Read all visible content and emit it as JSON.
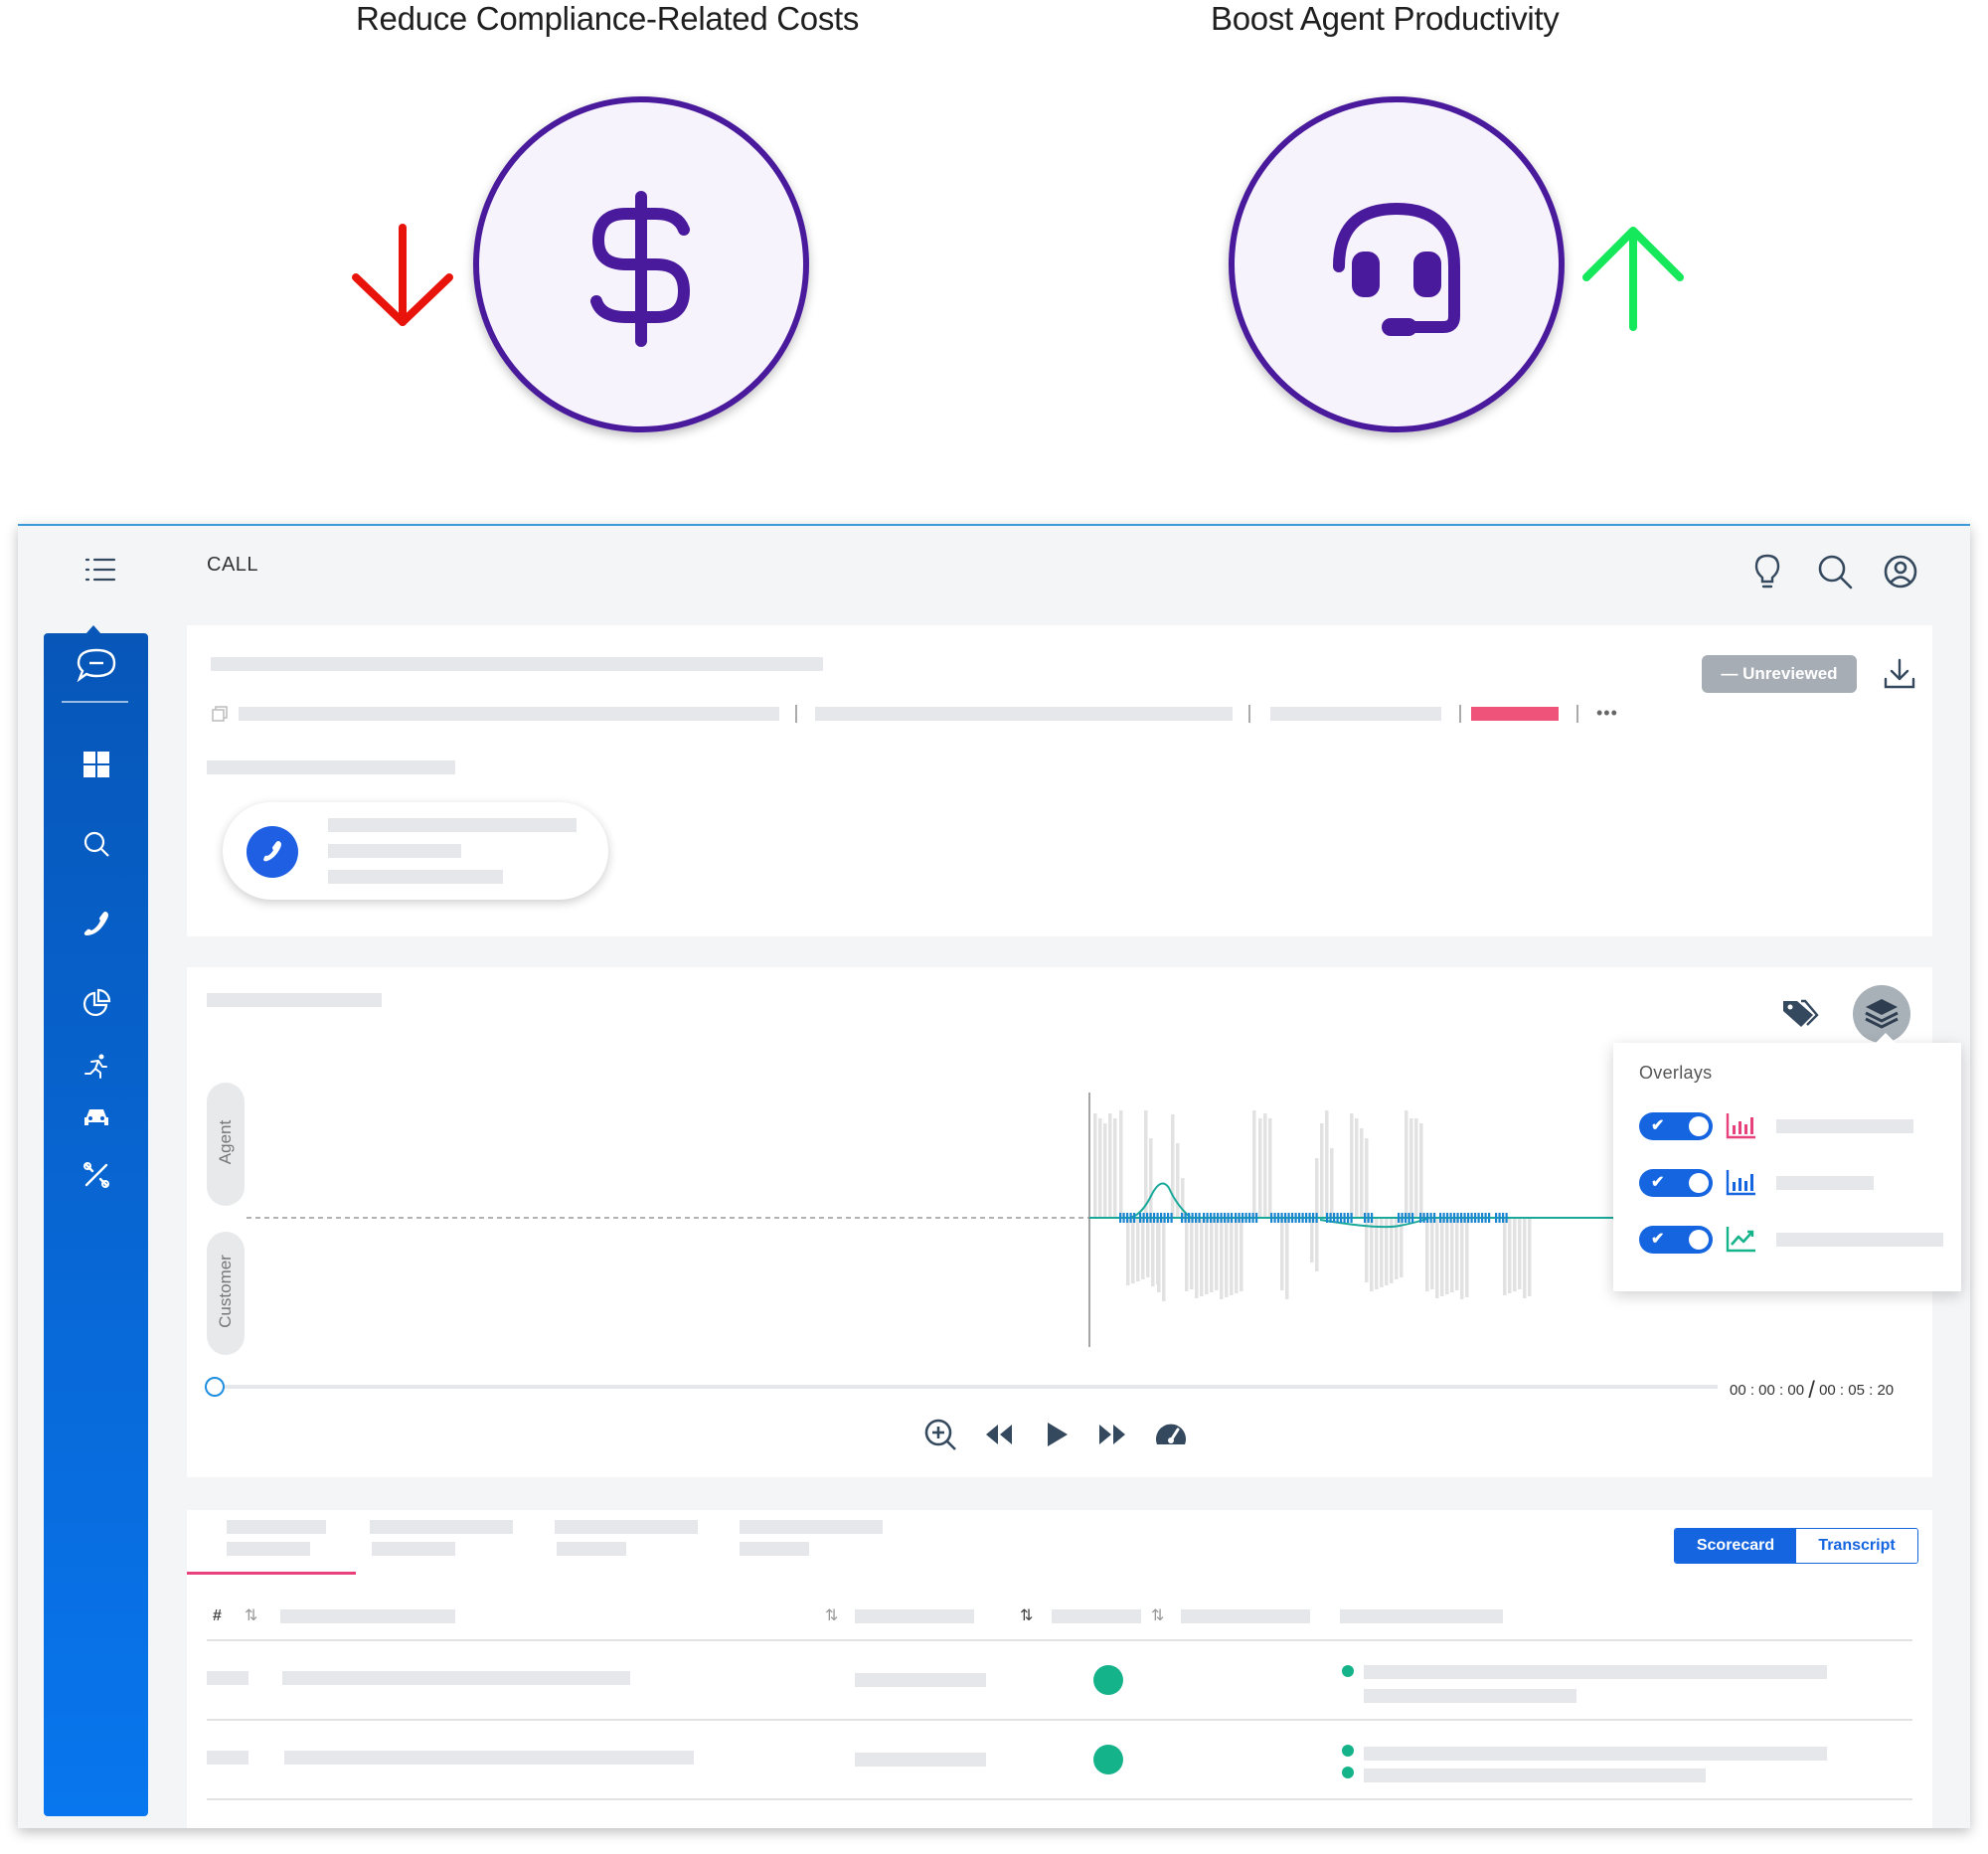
{
  "headings": {
    "left": "Reduce Compliance-Related Costs",
    "right": "Boost Agent Productivity"
  },
  "icons": {
    "left_circle": "dollar-icon",
    "right_circle": "headset-icon",
    "left_arrow": "arrow-down-icon",
    "right_arrow": "arrow-up-icon"
  },
  "colors": {
    "brand_purple": "#4a1a9c",
    "arrow_down": "#e8140c",
    "arrow_up": "#15e85a",
    "sidebar_blue": "#0876ee",
    "accent_red": "#f0537a",
    "green": "#15b38a"
  },
  "app": {
    "page_title": "CALL",
    "header_icons": [
      "lightbulb-icon",
      "search-icon",
      "user-icon"
    ],
    "sidebar_icons": [
      "chat-icon",
      "dashboard-icon",
      "search-icon",
      "phone-icon",
      "pie-chart-icon",
      "runner-icon",
      "car-icon",
      "tools-icon"
    ],
    "status_badge": "— Unreviewed",
    "waveform": {
      "agent_label": "Agent",
      "customer_label": "Customer",
      "time_current": "00 : 00 : 00",
      "time_separator": "/",
      "time_total": "00 : 05 : 20"
    },
    "overlays": {
      "title": "Overlays",
      "items": [
        {
          "checked": true,
          "icon": "bar-chart-icon",
          "color": "#e8407a"
        },
        {
          "checked": true,
          "icon": "bar-chart-icon",
          "color": "#1565e0"
        },
        {
          "checked": true,
          "icon": "trend-chart-icon",
          "color": "#15b38a"
        }
      ]
    },
    "view_toggle": {
      "scorecard": "Scorecard",
      "transcript": "Transcript"
    },
    "table": {
      "hash_header": "#"
    }
  }
}
